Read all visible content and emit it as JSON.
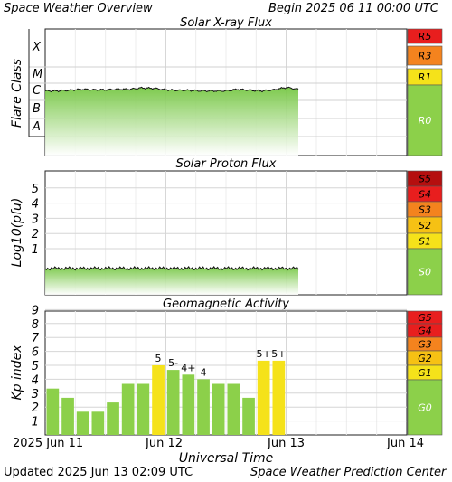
{
  "header": {
    "title": "Space Weather Overview",
    "begin": "Begin 2025 06 11 00:00 UTC"
  },
  "footer": {
    "updated": "Updated 2025 Jun 13 02:09 UTC",
    "center": "Space Weather Prediction Center"
  },
  "x_axis": {
    "label": "Universal Time",
    "ticks": [
      "2025 Jun 11",
      "Jun 12",
      "Jun 13",
      "Jun 14"
    ]
  },
  "colors": {
    "green": "#8cd04a",
    "yellow": "#f5e21a",
    "amber": "#f6c114",
    "orange": "#f4831e",
    "red": "#e81e1e",
    "darkred": "#b50f0f"
  },
  "chart_data": [
    {
      "type": "area",
      "title": "Solar X-ray Flux",
      "ylabel": "Flare Class",
      "y_scale": "log flare class",
      "y_ticks": [
        "A",
        "B",
        "C",
        "M",
        "X"
      ],
      "x_range_days": [
        0,
        3
      ],
      "series": [
        {
          "x": [
            0,
            0.1,
            0.2,
            0.3,
            0.4,
            0.5,
            0.6,
            0.7,
            0.8,
            0.9,
            1.0,
            1.1,
            1.2,
            1.3,
            1.4,
            1.5,
            1.6,
            1.7,
            1.8,
            1.9,
            2.0,
            2.1
          ],
          "values": [
            1.2,
            1.2,
            1.3,
            1.5,
            1.4,
            1.4,
            1.5,
            1.5,
            1.8,
            1.7,
            1.4,
            1.3,
            1.3,
            1.2,
            1.2,
            1.2,
            1.5,
            1.3,
            1.2,
            1.4,
            1.9,
            1.5
          ],
          "unit": "C-class"
        }
      ],
      "scale_labels": [
        "R5",
        "R3",
        "R1",
        "R0"
      ],
      "scale_colors": [
        "#e81e1e",
        "#f4831e",
        "#f5e21a",
        "#8cd04a"
      ],
      "grid": true
    },
    {
      "type": "area",
      "title": "Solar Proton Flux",
      "ylabel": "Log10(pfu)",
      "ylim": [
        -1,
        6
      ],
      "y_ticks": [
        1,
        2,
        3,
        4,
        5
      ],
      "x_range_days": [
        0,
        3
      ],
      "series": [
        {
          "x": [
            0,
            0.5,
            1.0,
            1.5,
            2.0,
            2.1
          ],
          "values": [
            -0.3,
            -0.3,
            -0.3,
            -0.3,
            -0.3,
            -0.3
          ]
        }
      ],
      "scale_labels": [
        "S5",
        "S4",
        "S3",
        "S2",
        "S1",
        "S0"
      ],
      "scale_colors": [
        "#b50f0f",
        "#e81e1e",
        "#f4831e",
        "#f6c114",
        "#f5e21a",
        "#8cd04a"
      ],
      "grid": true
    },
    {
      "type": "bar",
      "title": "Geomagnetic Activity",
      "ylabel": "Kp index",
      "ylim": [
        0,
        10
      ],
      "y_ticks": [
        1,
        2,
        3,
        4,
        5,
        6,
        7,
        8,
        9
      ],
      "x_range_days": [
        0,
        3
      ],
      "values": [
        3.33,
        2.67,
        1.67,
        1.67,
        2.33,
        3.67,
        3.67,
        5.0,
        4.67,
        4.33,
        4.0,
        3.67,
        3.67,
        2.67,
        5.33,
        5.33
      ],
      "bar_labels": [
        "",
        "",
        "",
        "",
        "",
        "",
        "",
        "5",
        "5-",
        "4+",
        "4",
        "",
        "",
        "",
        "5+",
        "5+"
      ],
      "scale_labels": [
        "G5",
        "G4",
        "G3",
        "G2",
        "G1",
        "G0"
      ],
      "scale_colors": [
        "#e81e1e",
        "#e81e1e",
        "#f4831e",
        "#f6c114",
        "#f5e21a",
        "#8cd04a"
      ],
      "grid": true
    }
  ]
}
